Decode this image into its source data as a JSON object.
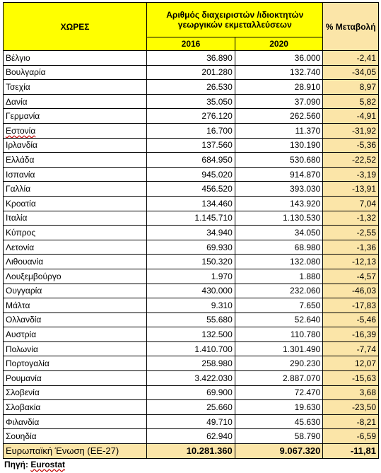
{
  "header": {
    "countries": "ΧΩΡΕΣ",
    "metric": "Αριθμός διαχειριστών /ιδιοκτητών γεωργικών εκμεταλλεύσεων",
    "change": "% Μεταβολή",
    "year1": "2016",
    "year2": "2020"
  },
  "rows": [
    {
      "country": "Βέλγιο",
      "v2016": "36.890",
      "v2020": "36.000",
      "pct": "-2,41"
    },
    {
      "country": "Βουλγαρία",
      "v2016": "201.280",
      "v2020": "132.740",
      "pct": "-34,05"
    },
    {
      "country": "Τσεχία",
      "v2016": "26.530",
      "v2020": "28.910",
      "pct": "8,97"
    },
    {
      "country": "Δανία",
      "v2016": "35.050",
      "v2020": "37.090",
      "pct": "5,82"
    },
    {
      "country": "Γερμανία",
      "v2016": "276.120",
      "v2020": "262.560",
      "pct": "-4,91"
    },
    {
      "country": "Εστονία",
      "v2016": "16.700",
      "v2020": "11.370",
      "pct": "-31,92"
    },
    {
      "country": "Ιρλανδία",
      "v2016": "137.560",
      "v2020": "130.190",
      "pct": "-5,36"
    },
    {
      "country": "Ελλάδα",
      "v2016": "684.950",
      "v2020": "530.680",
      "pct": "-22,52"
    },
    {
      "country": "Ισπανία",
      "v2016": "945.020",
      "v2020": "914.870",
      "pct": "-3,19"
    },
    {
      "country": "Γαλλία",
      "v2016": "456.520",
      "v2020": "393.030",
      "pct": "-13,91"
    },
    {
      "country": "Κροατία",
      "v2016": "134.460",
      "v2020": "143.920",
      "pct": "7,04"
    },
    {
      "country": "Ιταλία",
      "v2016": "1.145.710",
      "v2020": "1.130.530",
      "pct": "-1,32"
    },
    {
      "country": "Κύπρος",
      "v2016": "34.940",
      "v2020": "34.050",
      "pct": "-2,55"
    },
    {
      "country": "Λετονία",
      "v2016": "69.930",
      "v2020": "68.980",
      "pct": "-1,36"
    },
    {
      "country": "Λιθουανία",
      "v2016": "150.320",
      "v2020": "132.080",
      "pct": "-12,13"
    },
    {
      "country": "Λουξεμβούργο",
      "v2016": "1.970",
      "v2020": "1.880",
      "pct": "-4,57"
    },
    {
      "country": "Ουγγαρία",
      "v2016": "430.000",
      "v2020": "232.060",
      "pct": "-46,03"
    },
    {
      "country": "Μάλτα",
      "v2016": "9.310",
      "v2020": "7.650",
      "pct": "-17,83"
    },
    {
      "country": "Ολλανδία",
      "v2016": "55.680",
      "v2020": "52.640",
      "pct": "-5,46"
    },
    {
      "country": "Αυστρία",
      "v2016": "132.500",
      "v2020": "110.780",
      "pct": "-16,39"
    },
    {
      "country": "Πολωνία",
      "v2016": "1.410.700",
      "v2020": "1.301.490",
      "pct": "-7,74"
    },
    {
      "country": "Πορτογαλία",
      "v2016": "258.980",
      "v2020": "290.230",
      "pct": "12,07"
    },
    {
      "country": "Ρουμανία",
      "v2016": "3.422.030",
      "v2020": "2.887.070",
      "pct": "-15,63"
    },
    {
      "country": "Σλοβενία",
      "v2016": "69.900",
      "v2020": "72.470",
      "pct": "3,68"
    },
    {
      "country": "Σλοβακία",
      "v2016": "25.660",
      "v2020": "19.630",
      "pct": "-23,50"
    },
    {
      "country": "Φιλανδία",
      "v2016": "49.710",
      "v2020": "45.630",
      "pct": "-8,21"
    },
    {
      "country": "Σουηδία",
      "v2016": "62.940",
      "v2020": "58.790",
      "pct": "-6,59"
    }
  ],
  "total": {
    "country": "Ευρωπαϊκή Ένωση (ΕΕ-27)",
    "v2016": "10.281.360",
    "v2020": "9.067.320",
    "pct": "-11,81"
  },
  "source": {
    "label": "Πηγή:",
    "name": "Eurostat"
  },
  "colors": {
    "header_yellow": "#ffff00",
    "peach": "#fbe5a8"
  }
}
